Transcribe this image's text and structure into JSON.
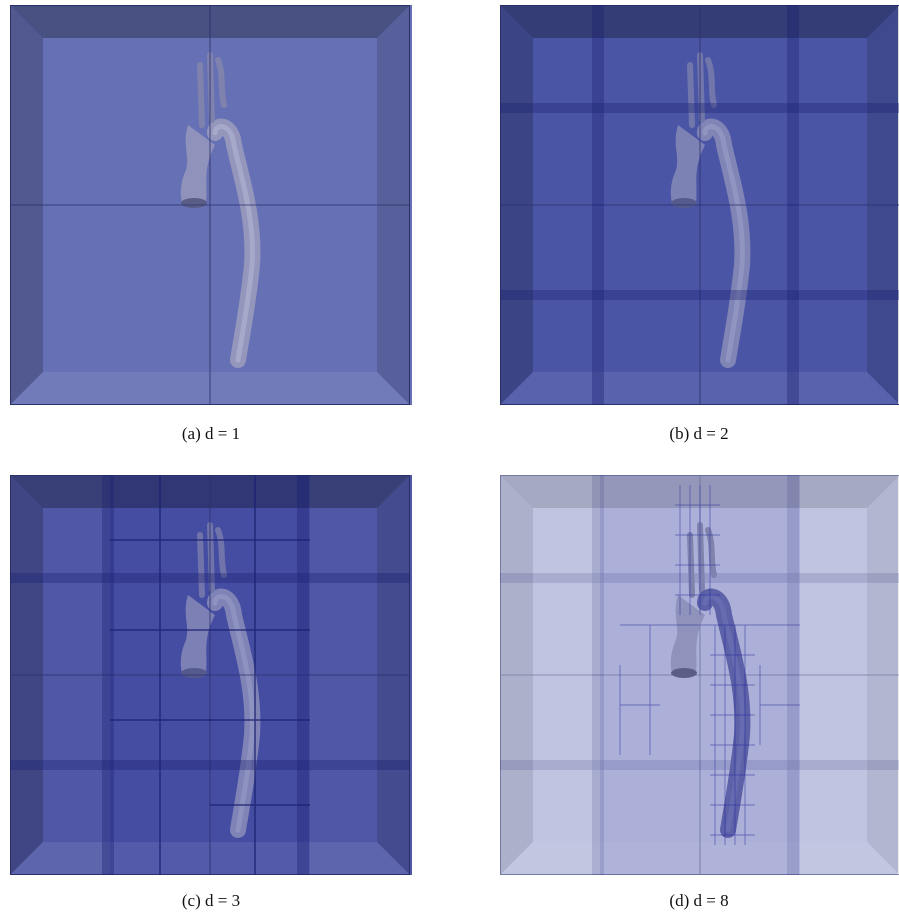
{
  "figure": {
    "panels": [
      {
        "caption": "(a) d = 1"
      },
      {
        "caption": "(b) d = 2"
      },
      {
        "caption": "(c) d = 3"
      },
      {
        "caption": "(d) d = 8"
      }
    ]
  }
}
